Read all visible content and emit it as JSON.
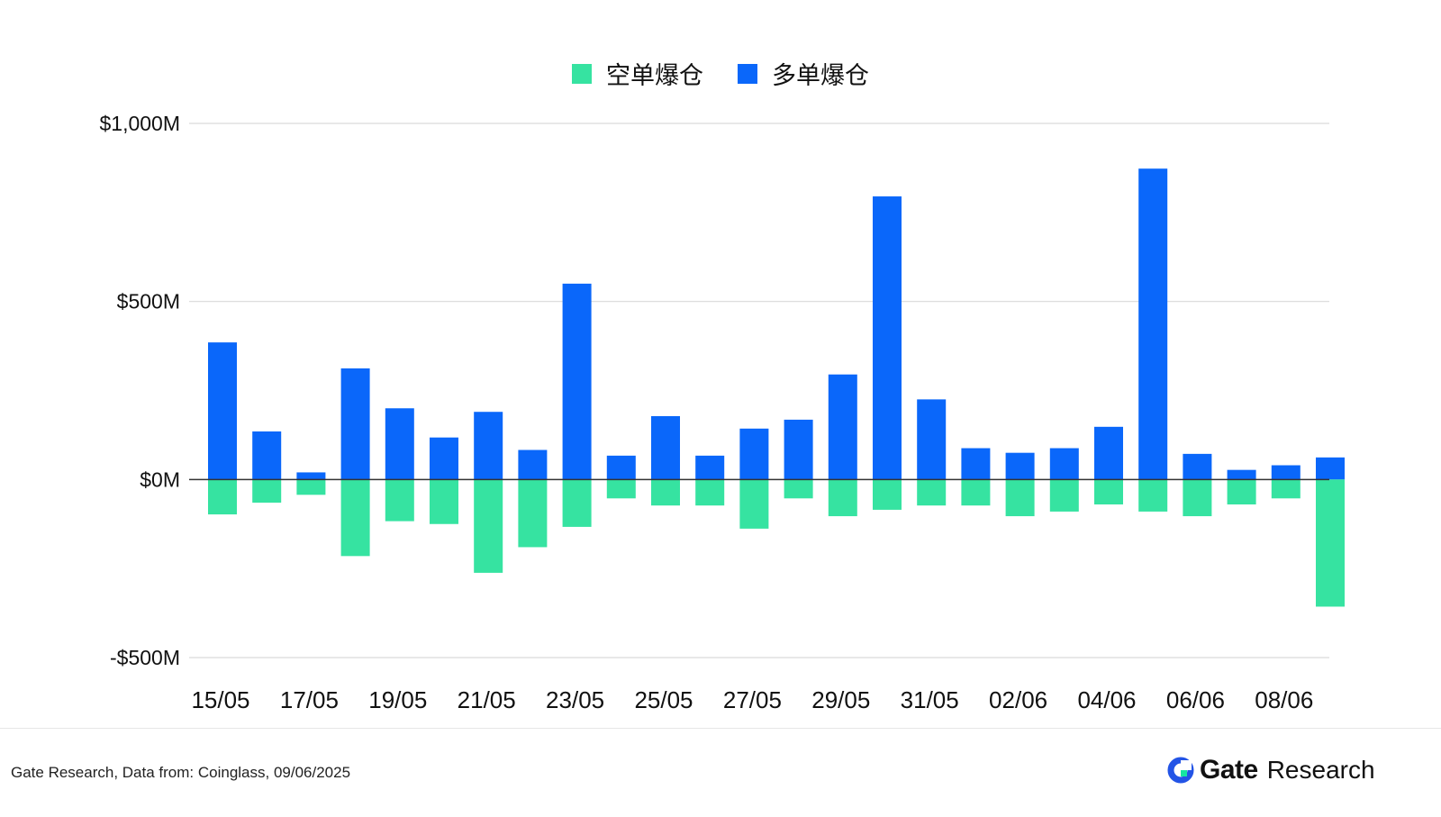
{
  "legend": {
    "short_label": "空单爆仓",
    "long_label": "多单爆仓"
  },
  "colors": {
    "short": "#36e3a1",
    "long": "#0a67fa",
    "grid": "#d9d9d9",
    "zero_line": "#333333"
  },
  "footer": {
    "source_text": "Gate Research, Data from: Coinglass, 09/06/2025",
    "brand_name": "Gate",
    "brand_sub": "Research",
    "logo_icon": "gate-logo-icon"
  },
  "chart_data": {
    "type": "bar",
    "stacked": true,
    "categories": [
      "15/05",
      "16/05",
      "17/05",
      "18/05",
      "19/05",
      "20/05",
      "21/05",
      "22/05",
      "23/05",
      "24/05",
      "25/05",
      "26/05",
      "27/05",
      "28/05",
      "29/05",
      "30/05",
      "31/05",
      "01/06",
      "02/06",
      "03/06",
      "04/06",
      "05/06",
      "06/06",
      "07/06",
      "08/06",
      "09/06"
    ],
    "x_tick_labels": [
      "15/05",
      "17/05",
      "19/05",
      "21/05",
      "23/05",
      "25/05",
      "27/05",
      "29/05",
      "31/05",
      "02/06",
      "04/06",
      "06/06",
      "08/06"
    ],
    "series": [
      {
        "name": "多单爆仓",
        "key": "long",
        "values": [
          385,
          135,
          20,
          312,
          200,
          118,
          190,
          83,
          550,
          67,
          178,
          67,
          143,
          168,
          295,
          795,
          225,
          88,
          75,
          88,
          148,
          873,
          72,
          27,
          40,
          62
        ]
      },
      {
        "name": "空单爆仓",
        "key": "short",
        "values": [
          -98,
          -65,
          -43,
          -215,
          -117,
          -125,
          -262,
          -190,
          -133,
          -53,
          -73,
          -73,
          -138,
          -53,
          -103,
          -85,
          -73,
          -73,
          -103,
          -90,
          -70,
          -90,
          -103,
          -70,
          -53,
          -357
        ]
      }
    ],
    "y_ticks": [
      1000,
      500,
      0,
      -500
    ],
    "y_tick_labels": [
      "$1,000M",
      "$500M",
      "$0M",
      "-$500M"
    ],
    "ylim": [
      -500,
      1000
    ],
    "grid": true,
    "legend_position": "top-center"
  }
}
